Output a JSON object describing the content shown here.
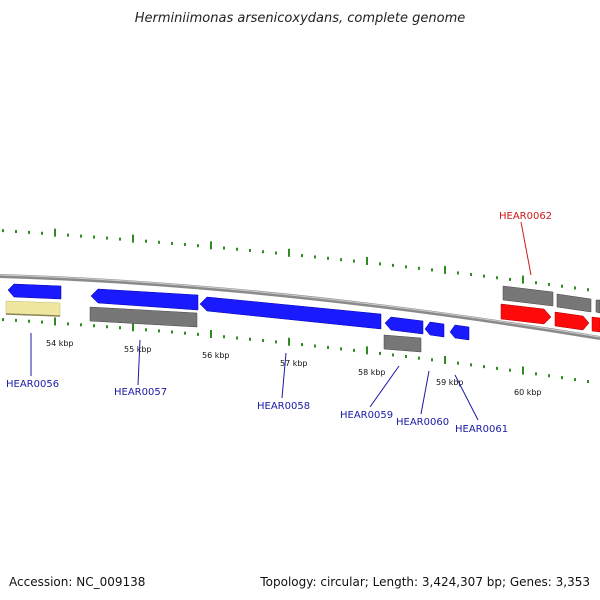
{
  "title": "Herminiimonas arsenicoxydans, complete genome",
  "footer": {
    "accession": "Accession: NC_009138",
    "stats": "Topology: circular; Length: 3,424,307 bp; Genes: 3,353"
  },
  "colors": {
    "cds_blue": "#1a1aff",
    "cds_red": "#ff0a0a",
    "feature_gray": "#666666",
    "feature_yellow": "#efe6a0",
    "gc_skew_green": "#2e8b1f",
    "backbone": "#9a9a9a",
    "label_blue": "#1a1aa6",
    "label_red": "#cc1a1a"
  },
  "kbp_ticks": [
    "54 kbp",
    "55 kbp",
    "56 kbp",
    "57 kbp",
    "58 kbp",
    "59 kbp",
    "60 kbp"
  ],
  "genes": [
    {
      "label": "HEAR0056",
      "color": "blue"
    },
    {
      "label": "HEAR0057",
      "color": "blue"
    },
    {
      "label": "HEAR0058",
      "color": "blue"
    },
    {
      "label": "HEAR0059",
      "color": "blue"
    },
    {
      "label": "HEAR0060",
      "color": "blue"
    },
    {
      "label": "HEAR0061",
      "color": "blue"
    },
    {
      "label": "HEAR0062",
      "color": "red"
    }
  ]
}
